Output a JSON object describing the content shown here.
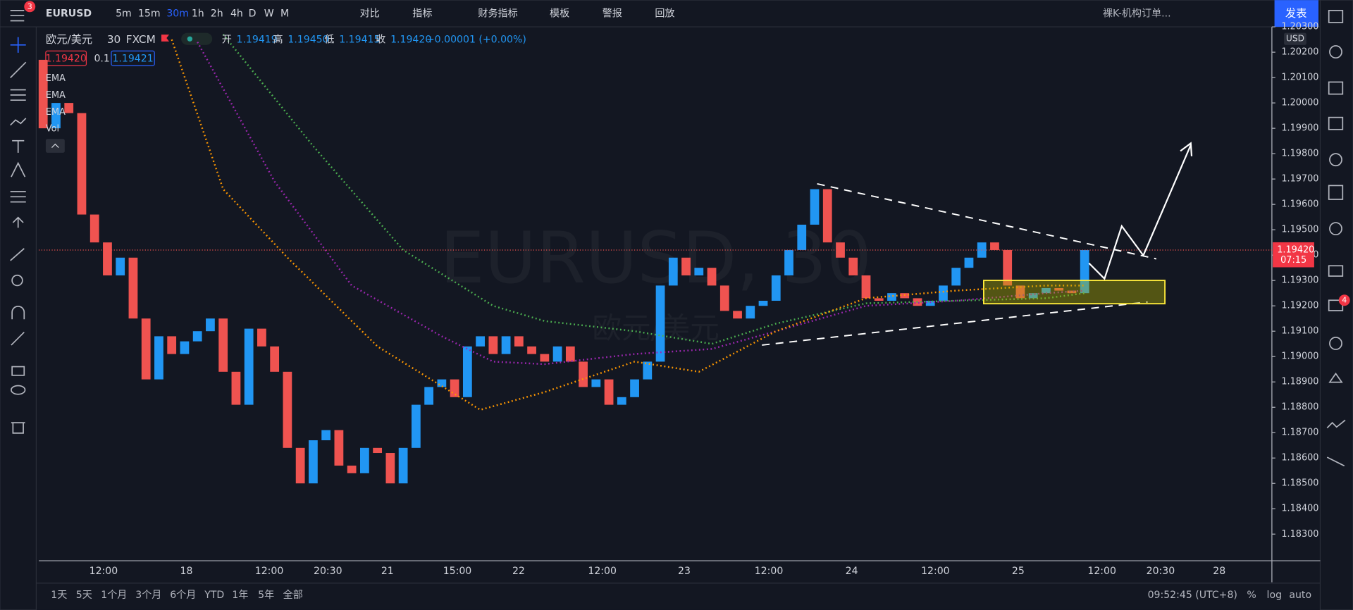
{
  "toolbar": {
    "symbol": "EURUSD",
    "notification_badge": "3",
    "intervals": [
      "5m",
      "15m",
      "30m",
      "1h",
      "2h",
      "4h",
      "D",
      "W",
      "M"
    ],
    "active_interval": 2,
    "buttons": [
      "对比",
      "指标",
      "财务指标",
      "模板",
      "警报",
      "回放"
    ],
    "layout_name": "裸K-机构订单...",
    "publish": "发表"
  },
  "legend": {
    "title": "欧元/美元",
    "interval": "30",
    "source": "FXCM",
    "ohlc": [
      {
        "label": "开",
        "value": "1.19419"
      },
      {
        "label": "高",
        "value": "1.19450"
      },
      {
        "label": "低",
        "value": "1.19415"
      },
      {
        "label": "收",
        "value": "1.19420"
      }
    ],
    "change": "+0.00001 (+0.00%)",
    "bid": "1.19420",
    "spread": "0.1",
    "ask": "1.19421",
    "indicators": [
      "EMA",
      "EMA",
      "EMA",
      "Vol"
    ]
  },
  "watermark": {
    "symbol": "EURUSD, 30",
    "name": "欧元/美元"
  },
  "chart": {
    "type": "candlestick",
    "up_color": "#2196f3",
    "down_color": "#ef5350",
    "close": [
      1.2017,
      1.199,
      1.2,
      1.1996,
      1.1956,
      1.1945,
      1.1932,
      1.1939,
      1.1915,
      1.1891,
      1.1908,
      1.1901,
      1.1906,
      1.191,
      1.1915,
      1.1894,
      1.1881,
      1.1911,
      1.1904,
      1.1894,
      1.1864,
      1.185,
      1.1867,
      1.1871,
      1.1857,
      1.1854,
      1.1864,
      1.1862,
      1.185,
      1.1864,
      1.1881,
      1.1888,
      1.1891,
      1.1884,
      1.1904,
      1.1908,
      1.1901,
      1.1908,
      1.1904,
      1.1901,
      1.1898,
      1.1904,
      1.1898,
      1.1888,
      1.1891,
      1.1881,
      1.1884,
      1.1891,
      1.1898,
      1.1928,
      1.1939,
      1.1932,
      1.1935,
      1.1928,
      1.1918,
      1.1915,
      1.192,
      1.1922,
      1.1932,
      1.1942,
      1.1952,
      1.1966,
      1.1945,
      1.1939,
      1.1932,
      1.1923,
      1.1922,
      1.1925,
      1.1923,
      1.192,
      1.1922,
      1.1928,
      1.1935,
      1.1939,
      1.1945,
      1.1942,
      1.1928,
      1.1923,
      1.1925,
      1.1927,
      1.1926,
      1.1925,
      1.1942
    ],
    "ema": [
      {
        "color": "#4caf50",
        "x": [
          14,
          21,
          28,
          35,
          39,
          46,
          52,
          57,
          64,
          71,
          78,
          81
        ],
        "values": [
          1.2027,
          1.1983,
          1.1942,
          1.192,
          1.1914,
          1.191,
          1.1905,
          1.1913,
          1.1921,
          1.1922,
          1.1923,
          1.1925
        ]
      },
      {
        "color": "#9c27b0",
        "x": [
          12,
          18,
          24,
          31,
          35,
          39,
          46,
          52,
          57,
          64,
          71,
          78,
          81
        ],
        "values": [
          1.2024,
          1.1969,
          1.1928,
          1.1908,
          1.1898,
          1.1897,
          1.1901,
          1.1903,
          1.191,
          1.192,
          1.1922,
          1.1925,
          1.1926
        ]
      },
      {
        "color": "#ff9800",
        "x": [
          10,
          14,
          19,
          26,
          34,
          39,
          46,
          51,
          57,
          64,
          71,
          78,
          81
        ],
        "values": [
          1.2025,
          1.1966,
          1.1939,
          1.1904,
          1.1879,
          1.1886,
          1.1898,
          1.1894,
          1.191,
          1.1923,
          1.1926,
          1.1928,
          1.1928
        ]
      }
    ],
    "ylim": [
      1.18195,
      1.203
    ],
    "yticks": [
      {
        "value": 1.183,
        "label": "1.18300"
      },
      {
        "value": 1.184,
        "label": "1.18400"
      },
      {
        "value": 1.185,
        "label": "1.18500"
      },
      {
        "value": 1.186,
        "label": "1.18600"
      },
      {
        "value": 1.187,
        "label": "1.18700"
      },
      {
        "value": 1.188,
        "label": "1.18800"
      },
      {
        "value": 1.189,
        "label": "1.18900"
      },
      {
        "value": 1.19,
        "label": "1.19000"
      },
      {
        "value": 1.191,
        "label": "1.19100"
      },
      {
        "value": 1.192,
        "label": "1.19200"
      },
      {
        "value": 1.193,
        "label": "1.19300"
      },
      {
        "value": 1.194,
        "label": "1.19400"
      },
      {
        "value": 1.195,
        "label": "1.19500"
      },
      {
        "value": 1.196,
        "label": "1.19600"
      },
      {
        "value": 1.197,
        "label": "1.19700"
      },
      {
        "value": 1.198,
        "label": "1.19800"
      },
      {
        "value": 1.199,
        "label": "1.19900"
      },
      {
        "value": 1.2,
        "label": "1.20000"
      },
      {
        "value": 1.201,
        "label": "1.20100"
      },
      {
        "value": 1.202,
        "label": "1.20200"
      },
      {
        "value": 1.203,
        "label": "1.20300"
      }
    ],
    "currency": "USD",
    "last_price": {
      "value": 1.1942,
      "label": "1.19420"
    },
    "countdown": "07:15",
    "time_labels": [
      "12:00",
      "18",
      "12:00",
      "20:30",
      "21",
      "15:00",
      "22",
      "12:00",
      "23",
      "12:00",
      "24",
      "12:00",
      "25",
      "12:00",
      "20:30",
      "28"
    ]
  },
  "bottom": {
    "ranges": [
      "1天",
      "5天",
      "1个月",
      "3个月",
      "6个月",
      "YTD",
      "1年",
      "5年",
      "全部"
    ],
    "clock": "09:52:45 (UTC+8)",
    "options": [
      "%",
      "log",
      "auto"
    ]
  },
  "sidebar_badge": "4"
}
